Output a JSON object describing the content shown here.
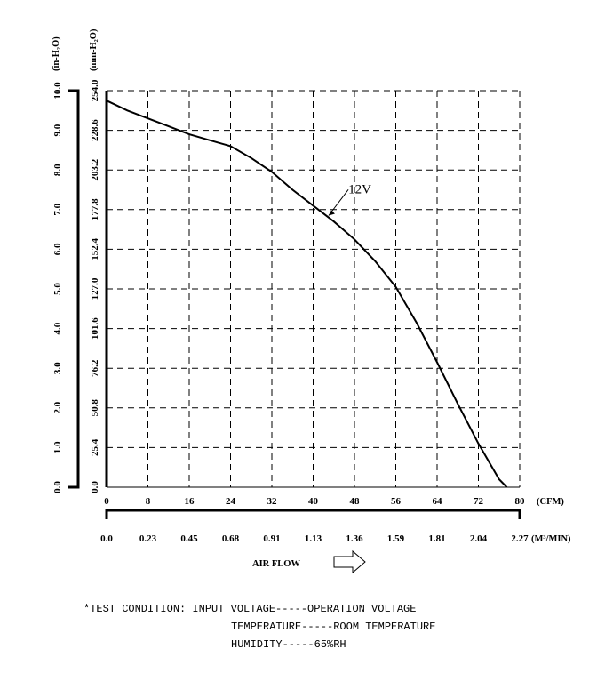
{
  "chart_data": {
    "type": "line",
    "y_unit_left": "(in-H₂O)",
    "y_unit_right": "(mm-H₂O)",
    "y_ticks_in": [
      "0.0",
      "1.0",
      "2.0",
      "3.0",
      "4.0",
      "5.0",
      "6.0",
      "7.0",
      "8.0",
      "9.0",
      "10.0"
    ],
    "y_ticks_mm": [
      "0.0",
      "25.4",
      "50.8",
      "76.2",
      "101.6",
      "127.0",
      "152.4",
      "177.8",
      "203.2",
      "228.6",
      "254.0"
    ],
    "x_ticks_cfm": [
      "0",
      "8",
      "16",
      "24",
      "32",
      "40",
      "48",
      "56",
      "64",
      "72",
      "80"
    ],
    "x_unit_cfm": "(CFM)",
    "x_ticks_m3": [
      "0.0",
      "0.23",
      "0.45",
      "0.68",
      "0.91",
      "1.13",
      "1.36",
      "1.59",
      "1.81",
      "2.04",
      "2.27"
    ],
    "x_unit_m3": "(M³/MIN)",
    "xlabel": "AIR FLOW",
    "xlim": [
      0,
      80
    ],
    "ylim": [
      0,
      10
    ],
    "grid": true,
    "series": [
      {
        "name": "12V",
        "x": [
          0,
          4,
          8,
          12,
          16,
          20,
          24,
          28,
          32,
          36,
          40,
          44,
          48,
          52,
          56,
          60,
          64,
          68,
          72,
          76,
          77.5
        ],
        "y": [
          9.75,
          9.5,
          9.3,
          9.1,
          8.9,
          8.75,
          8.6,
          8.3,
          7.95,
          7.5,
          7.1,
          6.7,
          6.25,
          5.7,
          5.05,
          4.15,
          3.15,
          2.1,
          1.1,
          0.2,
          0
        ]
      }
    ]
  },
  "notes": {
    "line1": "*TEST CONDITION: INPUT VOLTAGE-----OPERATION VOLTAGE",
    "line2": "TEMPERATURE-----ROOM TEMPERATURE",
    "line3": "HUMIDITY-----65%RH"
  }
}
